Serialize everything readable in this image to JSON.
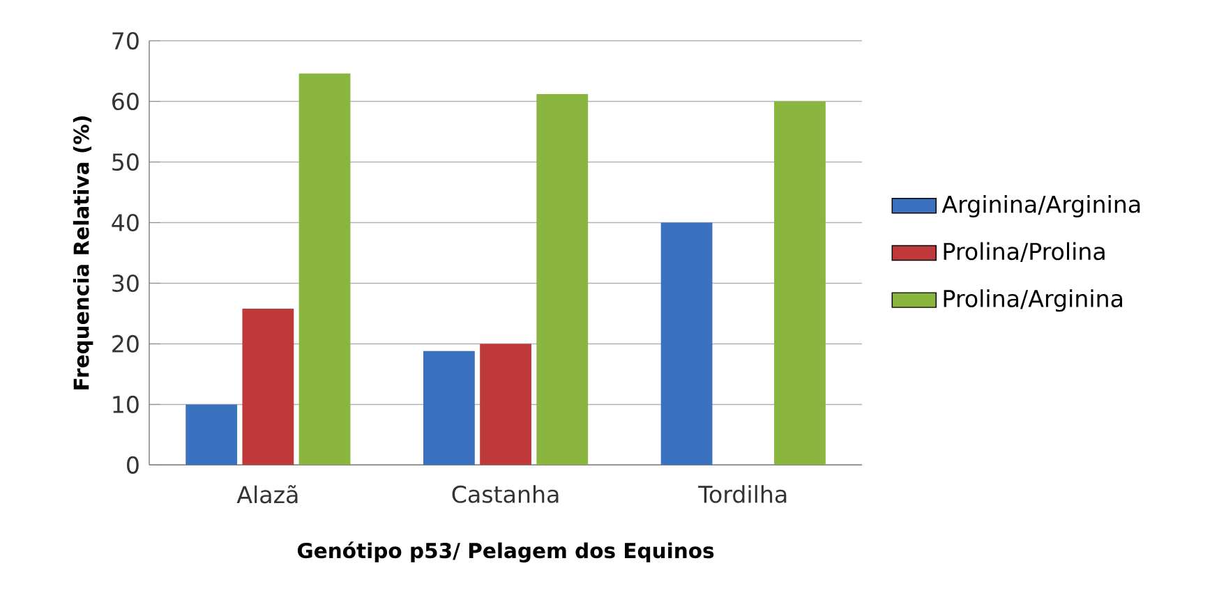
{
  "chart_data": {
    "type": "bar",
    "xlabel": "Genótipo p53/ Pelagem dos Equinos",
    "ylabel": "Frequencia Relativa (%)",
    "categories": [
      "Alazã",
      "Castanha",
      "Tordilha"
    ],
    "series": [
      {
        "name": "Arginina/Arginina",
        "color": "#3a72c0",
        "values": [
          10,
          18.8,
          40
        ]
      },
      {
        "name": "Prolina/Prolina",
        "color": "#c0393a",
        "values": [
          25.8,
          20,
          0
        ]
      },
      {
        "name": "Prolina/Arginina",
        "color": "#8ab53e",
        "values": [
          64.6,
          61.2,
          60
        ]
      }
    ],
    "ylim": [
      0,
      70
    ],
    "yticks": [
      0,
      10,
      20,
      30,
      40,
      50,
      60,
      70
    ],
    "grid": "y",
    "legend": "right"
  }
}
